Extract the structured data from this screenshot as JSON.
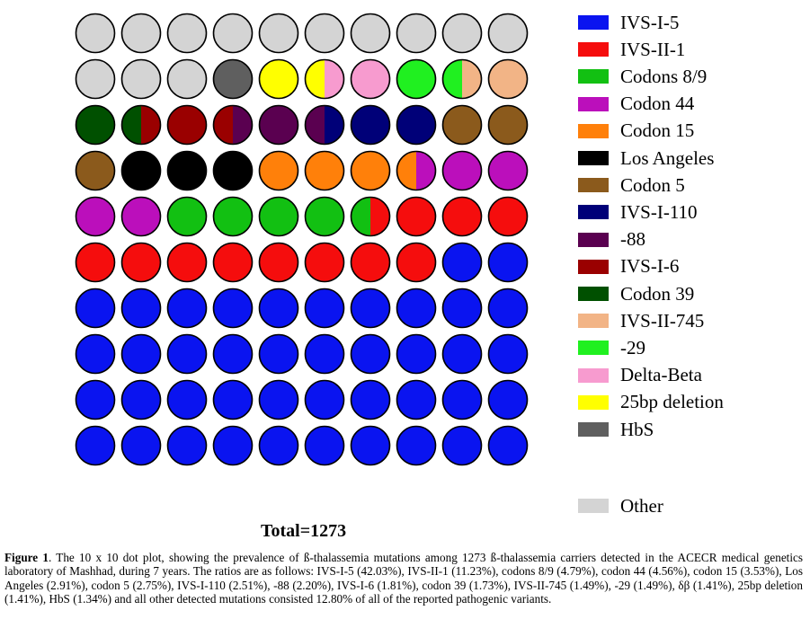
{
  "chart_data": {
    "type": "waffle",
    "title": "",
    "grid": {
      "rows": 10,
      "cols": 10
    },
    "total_label": "Total=1273",
    "categories": [
      {
        "key": "ivs_i_5",
        "label": "IVS-I-5",
        "color": "#0a14f0",
        "percent": 42.03
      },
      {
        "key": "ivs_ii_1",
        "label": "IVS-II-1",
        "color": "#f50d0d",
        "percent": 11.23
      },
      {
        "key": "codons_8_9",
        "label": "Codons 8/9",
        "color": "#12c012",
        "percent": 4.79
      },
      {
        "key": "codon_44",
        "label": "Codon 44",
        "color": "#bb0fbb",
        "percent": 4.56
      },
      {
        "key": "codon_15",
        "label": "Codon 15",
        "color": "#ff800a",
        "percent": 3.53
      },
      {
        "key": "los_angeles",
        "label": "Los Angeles",
        "color": "#000000",
        "percent": 2.91
      },
      {
        "key": "codon_5",
        "label": "Codon 5",
        "color": "#8b5a1c",
        "percent": 2.75
      },
      {
        "key": "ivs_i_110",
        "label": "IVS-I-110",
        "color": "#000078",
        "percent": 2.51
      },
      {
        "key": "m88",
        "label": "-88",
        "color": "#5a0050",
        "percent": 2.2
      },
      {
        "key": "ivs_i_6",
        "label": "IVS-I-6",
        "color": "#9a0000",
        "percent": 1.81
      },
      {
        "key": "codon_39",
        "label": "Codon 39",
        "color": "#005000",
        "percent": 1.73
      },
      {
        "key": "ivs_ii_745",
        "label": "IVS-II-745",
        "color": "#f2b486",
        "percent": 1.49
      },
      {
        "key": "m29",
        "label": "-29",
        "color": "#20f020",
        "percent": 1.49
      },
      {
        "key": "delta_beta",
        "label": "Delta-Beta",
        "color": "#f79bcf",
        "percent": 1.41
      },
      {
        "key": "del25bp",
        "label": "25bp deletion",
        "color": "#ffff00",
        "percent": 1.41
      },
      {
        "key": "hbs",
        "label": "HbS",
        "color": "#5f5f5f",
        "percent": 1.34
      },
      {
        "key": "other",
        "label": "Other",
        "color": "#d4d4d4",
        "percent": 12.8
      }
    ],
    "cells": [
      [
        "other",
        "other",
        "other",
        "other",
        "other",
        "other",
        "other",
        "other",
        "other",
        "other"
      ],
      [
        "other",
        "other",
        "other",
        "hbs",
        "del25bp",
        "del25bp|delta_beta",
        "delta_beta",
        "m29",
        "m29|ivs_ii_745",
        "ivs_ii_745"
      ],
      [
        "codon_39",
        "codon_39|ivs_i_6",
        "ivs_i_6",
        "ivs_i_6|m88",
        "m88",
        "m88|ivs_i_110",
        "ivs_i_110",
        "ivs_i_110",
        "codon_5",
        "codon_5"
      ],
      [
        "codon_5",
        "los_angeles",
        "los_angeles",
        "los_angeles",
        "codon_15",
        "codon_15",
        "codon_15",
        "codon_15|codon_44",
        "codon_44",
        "codon_44"
      ],
      [
        "codon_44",
        "codon_44",
        "codons_8_9",
        "codons_8_9",
        "codons_8_9",
        "codons_8_9",
        "codons_8_9|ivs_ii_1",
        "ivs_ii_1",
        "ivs_ii_1",
        "ivs_ii_1"
      ],
      [
        "ivs_ii_1",
        "ivs_ii_1",
        "ivs_ii_1",
        "ivs_ii_1",
        "ivs_ii_1",
        "ivs_ii_1",
        "ivs_ii_1",
        "ivs_ii_1",
        "ivs_i_5",
        "ivs_i_5"
      ],
      [
        "ivs_i_5",
        "ivs_i_5",
        "ivs_i_5",
        "ivs_i_5",
        "ivs_i_5",
        "ivs_i_5",
        "ivs_i_5",
        "ivs_i_5",
        "ivs_i_5",
        "ivs_i_5"
      ],
      [
        "ivs_i_5",
        "ivs_i_5",
        "ivs_i_5",
        "ivs_i_5",
        "ivs_i_5",
        "ivs_i_5",
        "ivs_i_5",
        "ivs_i_5",
        "ivs_i_5",
        "ivs_i_5"
      ],
      [
        "ivs_i_5",
        "ivs_i_5",
        "ivs_i_5",
        "ivs_i_5",
        "ivs_i_5",
        "ivs_i_5",
        "ivs_i_5",
        "ivs_i_5",
        "ivs_i_5",
        "ivs_i_5"
      ],
      [
        "ivs_i_5",
        "ivs_i_5",
        "ivs_i_5",
        "ivs_i_5",
        "ivs_i_5",
        "ivs_i_5",
        "ivs_i_5",
        "ivs_i_5",
        "ivs_i_5",
        "ivs_i_5"
      ]
    ]
  },
  "caption": {
    "label": "Figure 1",
    "text": ". The 10 x 10 dot plot, showing the prevalence of ß-thalassemia mutations among 1273 ß-thalassemia carriers detected in the ACECR medical genetics laboratory of Mashhad, during 7 years. The ratios are as follows: IVS-I-5 (42.03%), IVS-II-1 (11.23%), codons 8/9 (4.79%), codon 44 (4.56%), codon 15 (3.53%), Los Angeles (2.91%), codon 5 (2.75%), IVS-I-110 (2.51%), -88 (2.20%), IVS-I-6 (1.81%), codon 39 (1.73%), IVS-II-745 (1.49%), -29 (1.49%), δβ (1.41%), 25bp deletion (1.41%), HbS (1.34%) and all other detected mutations consisted 12.80% of all of the reported pathogenic variants."
  }
}
